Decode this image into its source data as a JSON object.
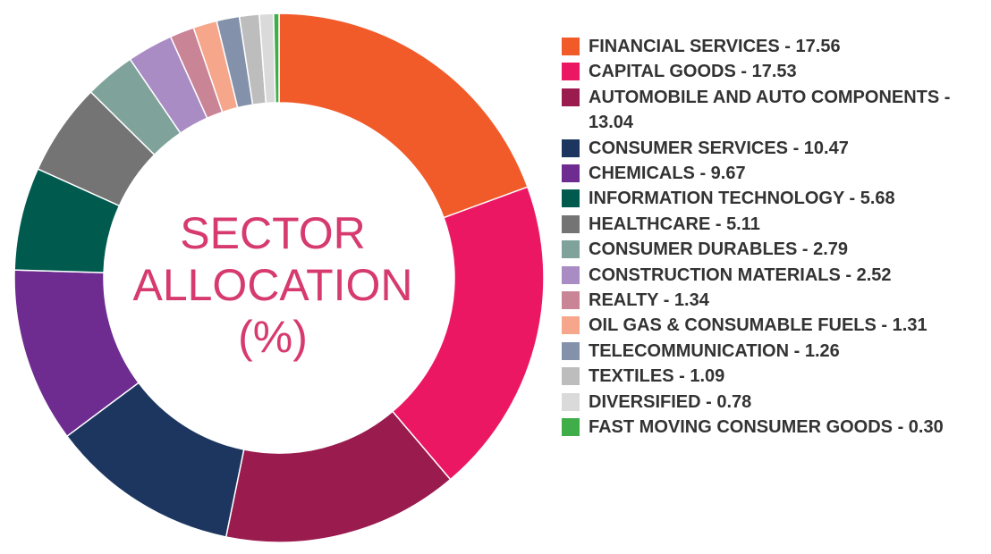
{
  "chart_data": {
    "type": "pie",
    "variant": "donut",
    "title_lines": [
      "SECTOR",
      "ALLOCATION",
      "(%)"
    ],
    "legend_position": "right",
    "slices": [
      {
        "label": "FINANCIAL SERVICES - 17.56",
        "value": 17.56,
        "color": "#f15a29"
      },
      {
        "label": "CAPITAL GOODS - 17.53",
        "value": 17.53,
        "color": "#ec1763"
      },
      {
        "label": "AUTOMOBILE AND AUTO COMPONENTS - 13.04",
        "value": 13.04,
        "color": "#9a1b4e"
      },
      {
        "label": "CONSUMER SERVICES - 10.47",
        "value": 10.47,
        "color": "#1c3660"
      },
      {
        "label": "CHEMICALS - 9.67",
        "value": 9.67,
        "color": "#6e2c91"
      },
      {
        "label": "INFORMATION TECHNOLOGY - 5.68",
        "value": 5.68,
        "color": "#005a4e"
      },
      {
        "label": "HEALTHCARE - 5.11",
        "value": 5.11,
        "color": "#747474"
      },
      {
        "label": "CONSUMER DURABLES - 2.79",
        "value": 2.79,
        "color": "#7fa39b"
      },
      {
        "label": "CONSTRUCTION MATERIALS - 2.52",
        "value": 2.52,
        "color": "#a98cc4"
      },
      {
        "label": "REALTY - 1.34",
        "value": 1.34,
        "color": "#c98496"
      },
      {
        "label": "OIL GAS & CONSUMABLE FUELS - 1.31",
        "value": 1.31,
        "color": "#f6a68a"
      },
      {
        "label": "TELECOMMUNICATION - 1.26",
        "value": 1.26,
        "color": "#8391ab"
      },
      {
        "label": "TEXTILES - 1.09",
        "value": 1.09,
        "color": "#bdbdbd"
      },
      {
        "label": "DIVERSIFIED - 0.78",
        "value": 0.78,
        "color": "#dadada"
      },
      {
        "label": "FAST MOVING CONSUMER GOODS - 0.30",
        "value": 0.3,
        "color": "#3fae49"
      }
    ]
  }
}
